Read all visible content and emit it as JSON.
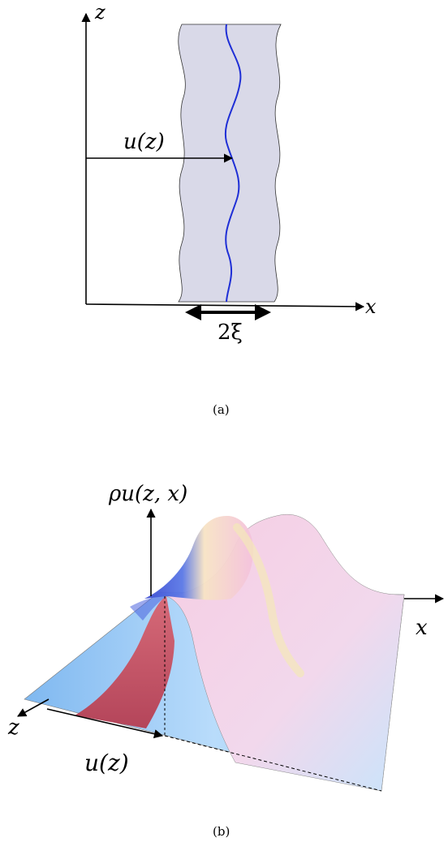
{
  "panel_a": {
    "axis_x_label": "x",
    "axis_z_label": "z",
    "displacement_label": "u(z)",
    "width_label": "2ξ",
    "caption": "(a)",
    "colors": {
      "band_fill": "#d9d9e8",
      "center_line": "#1f2fd6",
      "outline": "#333333"
    }
  },
  "panel_b": {
    "axis_rho_label": "ρu(z, x)",
    "axis_x_label": "x",
    "axis_z_label": "z",
    "displacement_label": "u(z)",
    "caption": "(b)",
    "colors": {
      "peak_dark": "#3d4fd8",
      "peak_light": "#f6c9e0",
      "base": "#8fc3f2",
      "front_red": "#c95763"
    }
  }
}
